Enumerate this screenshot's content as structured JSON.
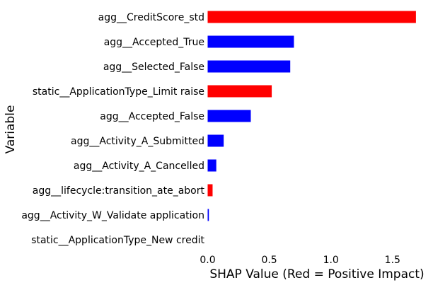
{
  "chart_data": {
    "type": "bar",
    "orientation": "horizontal",
    "title": "",
    "xlabel": "SHAP Value (Red = Positive Impact)",
    "ylabel": "Variable",
    "xlim": [
      0,
      1.7
    ],
    "xticks": [
      "0.0",
      "0.5",
      "1.0",
      "1.5"
    ],
    "grid": false,
    "categories": [
      "agg__CreditScore_std",
      "agg__Accepted_True",
      "agg__Selected_False",
      "static__ApplicationType_Limit raise",
      "agg__Accepted_False",
      "agg__Activity_A_Submitted",
      "agg__Activity_A_Cancelled",
      "agg__lifecycle:transition_ate_abort",
      "agg__Activity_W_Validate application",
      "static__ApplicationType_New credit"
    ],
    "values": [
      1.69,
      0.7,
      0.67,
      0.52,
      0.35,
      0.13,
      0.07,
      0.04,
      0.01,
      0.0
    ],
    "bar_colors": [
      "#ff0000",
      "#0000ff",
      "#0000ff",
      "#ff0000",
      "#0000ff",
      "#0000ff",
      "#0000ff",
      "#ff0000",
      "#0000ff",
      "#0000ff"
    ]
  }
}
